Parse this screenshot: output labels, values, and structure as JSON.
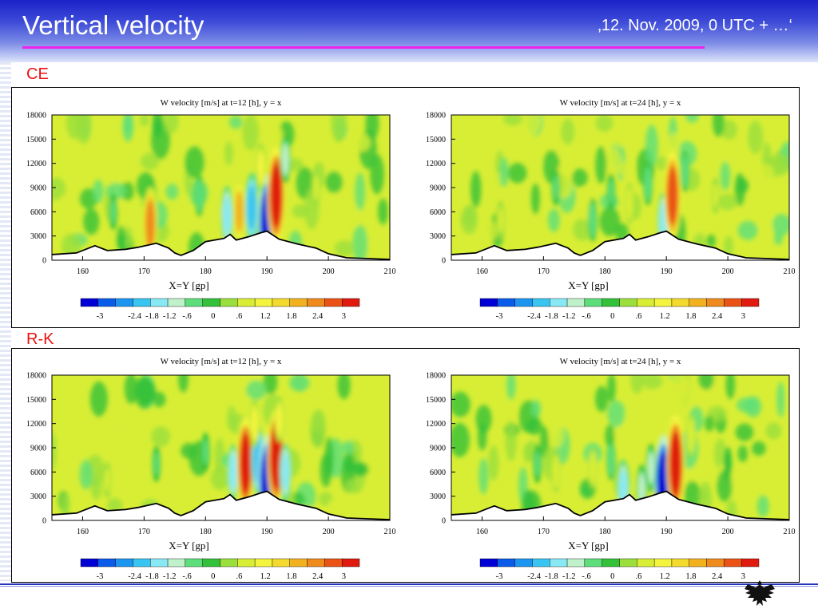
{
  "header": {
    "title": "Vertical velocity",
    "subtitle": "‚12. Nov. 2009, 0 UTC + …‘"
  },
  "sections": [
    {
      "label": "CE"
    },
    {
      "label": "R-K"
    }
  ],
  "palette": [
    "#0000d6",
    "#0a5bea",
    "#1c95f0",
    "#38c5f2",
    "#88e9f4",
    "#bff1cb",
    "#5dde7a",
    "#33c13a",
    "#9adf3c",
    "#d8ee35",
    "#f4f43e",
    "#f4d92e",
    "#f2b11f",
    "#ef8a1d",
    "#ea5315",
    "#e01a0e"
  ],
  "chart_data": [
    {
      "type": "heatmap",
      "panel": "CE",
      "title": "W velocity [m/s] at t=12 [h], y = x",
      "xlabel": "X=Y [gp]",
      "ylabel": "",
      "xlim": [
        155,
        210
      ],
      "ylim": [
        0,
        18000
      ],
      "xticks": [
        160,
        170,
        180,
        190,
        200,
        210
      ],
      "yticks": [
        0,
        3000,
        6000,
        9000,
        12000,
        15000,
        18000
      ],
      "colorbar_labels": [
        "-3",
        "-2.4",
        "-1.8",
        "-1.2",
        "-.6",
        "0",
        ".6",
        "1.2",
        "1.8",
        "2.4",
        "3"
      ],
      "features": [
        {
          "x": 171,
          "z": 4500,
          "value": 2.0
        },
        {
          "x": 183.5,
          "z": 5500,
          "value": -1.4
        },
        {
          "x": 185.5,
          "z": 6000,
          "value": 1.6
        },
        {
          "x": 187.5,
          "z": 6500,
          "value": -1.8
        },
        {
          "x": 190,
          "z": 4500,
          "value": -3.0
        },
        {
          "x": 191.5,
          "z": 8000,
          "value": 3.0
        },
        {
          "x": 189,
          "z": 11500,
          "value": 0.9
        },
        {
          "x": 193,
          "z": 12500,
          "value": -0.9
        },
        {
          "x": 179,
          "z": 8000,
          "value": -0.6
        },
        {
          "x": 165,
          "z": 6000,
          "value": -0.4
        },
        {
          "x": 198,
          "z": 9000,
          "value": 0.5
        }
      ],
      "terrain": [
        [
          155,
          700
        ],
        [
          159,
          900
        ],
        [
          162,
          1800
        ],
        [
          164,
          1200
        ],
        [
          167,
          1350
        ],
        [
          169,
          1600
        ],
        [
          172,
          2100
        ],
        [
          174,
          1500
        ],
        [
          175,
          900
        ],
        [
          176,
          600
        ],
        [
          178,
          1200
        ],
        [
          180,
          2300
        ],
        [
          183,
          2700
        ],
        [
          184,
          3200
        ],
        [
          185,
          2500
        ],
        [
          187,
          2900
        ],
        [
          189,
          3400
        ],
        [
          190,
          3600
        ],
        [
          192,
          2600
        ],
        [
          195,
          2000
        ],
        [
          198,
          1500
        ],
        [
          200,
          800
        ],
        [
          203,
          300
        ],
        [
          210,
          100
        ]
      ]
    },
    {
      "type": "heatmap",
      "panel": "CE",
      "title": "W velocity [m/s] at t=24 [h], y = x",
      "xlabel": "X=Y [gp]",
      "ylabel": "",
      "xlim": [
        155,
        210
      ],
      "ylim": [
        0,
        18000
      ],
      "xticks": [
        160,
        170,
        180,
        190,
        200,
        210
      ],
      "yticks": [
        0,
        3000,
        6000,
        9000,
        12000,
        15000,
        18000
      ],
      "colorbar_labels": [
        "-3",
        "-2.4",
        "-1.8",
        "-1.2",
        "-.6",
        "0",
        ".6",
        "1.2",
        "1.8",
        "2.4",
        "3"
      ],
      "features": [
        {
          "x": 189.5,
          "z": 4800,
          "value": -1.3
        },
        {
          "x": 191,
          "z": 8000,
          "value": 2.6
        },
        {
          "x": 187,
          "z": 9500,
          "value": -0.7
        },
        {
          "x": 193,
          "z": 11000,
          "value": -0.6
        },
        {
          "x": 184,
          "z": 7000,
          "value": 0.6
        },
        {
          "x": 178,
          "z": 5000,
          "value": -0.7
        },
        {
          "x": 181,
          "z": 8500,
          "value": -0.4
        },
        {
          "x": 163,
          "z": 5000,
          "value": 0.5
        },
        {
          "x": 172,
          "z": 9000,
          "value": -0.4
        },
        {
          "x": 198,
          "z": 8000,
          "value": 0.4
        }
      ],
      "terrain": [
        [
          155,
          700
        ],
        [
          159,
          900
        ],
        [
          162,
          1800
        ],
        [
          164,
          1200
        ],
        [
          167,
          1350
        ],
        [
          169,
          1600
        ],
        [
          172,
          2100
        ],
        [
          174,
          1500
        ],
        [
          175,
          900
        ],
        [
          176,
          600
        ],
        [
          178,
          1200
        ],
        [
          180,
          2300
        ],
        [
          183,
          2700
        ],
        [
          184,
          3200
        ],
        [
          185,
          2500
        ],
        [
          187,
          2900
        ],
        [
          189,
          3400
        ],
        [
          190,
          3600
        ],
        [
          192,
          2600
        ],
        [
          195,
          2000
        ],
        [
          198,
          1500
        ],
        [
          200,
          800
        ],
        [
          203,
          300
        ],
        [
          210,
          100
        ]
      ]
    },
    {
      "type": "heatmap",
      "panel": "R-K",
      "title": "W velocity [m/s] at t=12 [h], y = x",
      "xlabel": "X=Y [gp]",
      "ylabel": "",
      "xlim": [
        155,
        210
      ],
      "ylim": [
        0,
        18000
      ],
      "xticks": [
        160,
        170,
        180,
        190,
        200,
        210
      ],
      "yticks": [
        0,
        3000,
        6000,
        9000,
        12000,
        15000,
        18000
      ],
      "colorbar_labels": [
        "-3",
        "-2.4",
        "-1.8",
        "-1.2",
        "-.6",
        "0",
        ".6",
        "1.2",
        "1.8",
        "2.4",
        "3"
      ],
      "features": [
        {
          "x": 184.5,
          "z": 6000,
          "value": -1.2
        },
        {
          "x": 186.5,
          "z": 7000,
          "value": 2.8
        },
        {
          "x": 188.5,
          "z": 7500,
          "value": -1.8
        },
        {
          "x": 190,
          "z": 4500,
          "value": -3.0
        },
        {
          "x": 191.5,
          "z": 7800,
          "value": 3.0
        },
        {
          "x": 193,
          "z": 6000,
          "value": -1.3
        },
        {
          "x": 188,
          "z": 12000,
          "value": 0.9
        },
        {
          "x": 192,
          "z": 12500,
          "value": 0.8
        },
        {
          "x": 180,
          "z": 8500,
          "value": -0.5
        },
        {
          "x": 172,
          "z": 7000,
          "value": -0.4
        },
        {
          "x": 164,
          "z": 5000,
          "value": 0.4
        }
      ],
      "terrain": [
        [
          155,
          700
        ],
        [
          159,
          900
        ],
        [
          162,
          1800
        ],
        [
          164,
          1200
        ],
        [
          167,
          1350
        ],
        [
          169,
          1600
        ],
        [
          172,
          2100
        ],
        [
          174,
          1500
        ],
        [
          175,
          900
        ],
        [
          176,
          600
        ],
        [
          178,
          1200
        ],
        [
          180,
          2300
        ],
        [
          183,
          2700
        ],
        [
          184,
          3200
        ],
        [
          185,
          2500
        ],
        [
          187,
          2900
        ],
        [
          189,
          3400
        ],
        [
          190,
          3600
        ],
        [
          192,
          2600
        ],
        [
          195,
          2000
        ],
        [
          198,
          1500
        ],
        [
          200,
          800
        ],
        [
          203,
          300
        ],
        [
          210,
          100
        ]
      ]
    },
    {
      "type": "heatmap",
      "panel": "R-K",
      "title": "W velocity [m/s] at t=24 [h], y = x",
      "xlabel": "X=Y [gp]",
      "ylabel": "",
      "xlim": [
        155,
        210
      ],
      "ylim": [
        0,
        18000
      ],
      "xticks": [
        160,
        170,
        180,
        190,
        200,
        210
      ],
      "yticks": [
        0,
        3000,
        6000,
        9000,
        12000,
        15000,
        18000
      ],
      "colorbar_labels": [
        "-3",
        "-2.4",
        "-1.8",
        "-1.2",
        "-.6",
        "0",
        ".6",
        "1.2",
        "1.8",
        "2.4",
        "3"
      ],
      "features": [
        {
          "x": 189.5,
          "z": 4500,
          "value": -3.0
        },
        {
          "x": 191.5,
          "z": 7000,
          "value": 3.0
        },
        {
          "x": 183,
          "z": 3800,
          "value": -1.4
        },
        {
          "x": 186,
          "z": 3800,
          "value": -1.0
        },
        {
          "x": 187.5,
          "z": 6500,
          "value": -0.9
        },
        {
          "x": 181,
          "z": 7500,
          "value": -0.6
        },
        {
          "x": 178,
          "z": 6500,
          "value": 0.6
        },
        {
          "x": 172,
          "z": 6000,
          "value": 0.6
        },
        {
          "x": 169,
          "z": 7000,
          "value": -0.5
        },
        {
          "x": 194,
          "z": 10500,
          "value": 0.7
        },
        {
          "x": 200,
          "z": 7000,
          "value": -0.3
        }
      ],
      "terrain": [
        [
          155,
          700
        ],
        [
          159,
          900
        ],
        [
          162,
          1800
        ],
        [
          164,
          1200
        ],
        [
          167,
          1350
        ],
        [
          169,
          1600
        ],
        [
          172,
          2100
        ],
        [
          174,
          1500
        ],
        [
          175,
          900
        ],
        [
          176,
          600
        ],
        [
          178,
          1200
        ],
        [
          180,
          2300
        ],
        [
          183,
          2700
        ],
        [
          184,
          3200
        ],
        [
          185,
          2500
        ],
        [
          187,
          2900
        ],
        [
          189,
          3400
        ],
        [
          190,
          3600
        ],
        [
          192,
          2600
        ],
        [
          195,
          2000
        ],
        [
          198,
          1500
        ],
        [
          200,
          800
        ],
        [
          203,
          300
        ],
        [
          210,
          100
        ]
      ]
    }
  ]
}
